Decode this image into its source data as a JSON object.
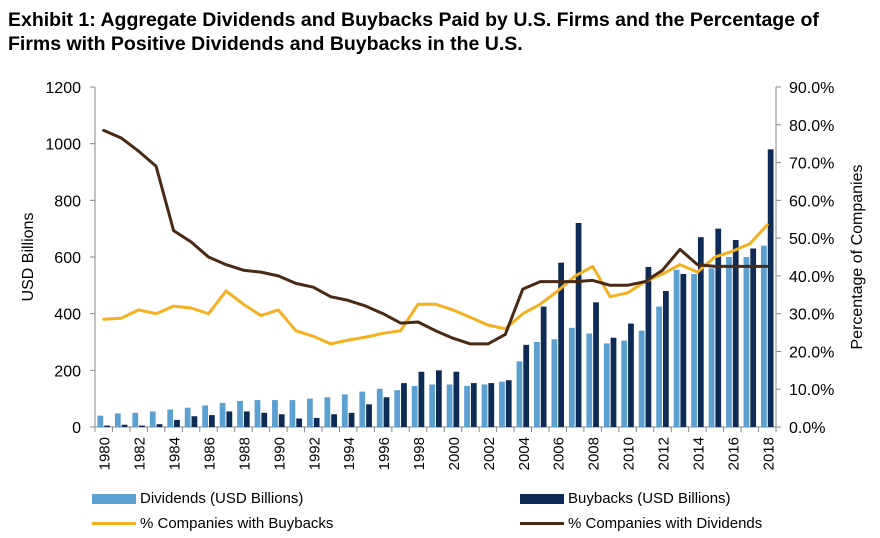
{
  "title": "Exhibit 1: Aggregate Dividends and Buybacks Paid by U.S. Firms and the Percentage of Firms with Positive Dividends and Buybacks in the U.S.",
  "legend": {
    "dividends": "Dividends (USD Billions)",
    "buybacks": "Buybacks (USD Billions)",
    "pct_buybacks": "% Companies with Buybacks",
    "pct_dividends": "% Companies with Dividends"
  },
  "colors": {
    "dividends": "#5aa0d0",
    "buybacks": "#0d2b55",
    "pct_buybacks": "#f5b022",
    "pct_dividends": "#4a2a14"
  },
  "chart_data": {
    "type": "bar",
    "xlabel": "",
    "ylabel": "USD Billions",
    "y2label": "Percentage of Companies",
    "ylim": [
      0,
      1200
    ],
    "y2lim": [
      0,
      90
    ],
    "yticks": [
      "0",
      "200",
      "400",
      "600",
      "800",
      "1000",
      "1200"
    ],
    "y2ticks": [
      "0.0%",
      "10.0%",
      "20.0%",
      "30.0%",
      "40.0%",
      "50.0%",
      "60.0%",
      "70.0%",
      "80.0%",
      "90.0%"
    ],
    "categories": [
      "1980",
      "1981",
      "1982",
      "1983",
      "1984",
      "1985",
      "1986",
      "1987",
      "1988",
      "1989",
      "1990",
      "1991",
      "1992",
      "1993",
      "1994",
      "1995",
      "1996",
      "1997",
      "1998",
      "1999",
      "2000",
      "2001",
      "2002",
      "2003",
      "2004",
      "2005",
      "2006",
      "2007",
      "2008",
      "2009",
      "2010",
      "2011",
      "2012",
      "2013",
      "2014",
      "2015",
      "2016",
      "2017",
      "2018"
    ],
    "xtick_labels": [
      "1980",
      "1982",
      "1984",
      "1986",
      "1988",
      "1990",
      "1992",
      "1994",
      "1996",
      "1998",
      "2000",
      "2002",
      "2004",
      "2006",
      "2008",
      "2010",
      "2012",
      "2014",
      "2016",
      "2018"
    ],
    "series": [
      {
        "name": "Dividends (USD Billions)",
        "type": "bar",
        "axis": "left",
        "values": [
          40,
          48,
          50,
          55,
          62,
          68,
          76,
          85,
          92,
          95,
          95,
          95,
          100,
          105,
          115,
          125,
          135,
          130,
          145,
          150,
          150,
          145,
          150,
          160,
          232,
          300,
          310,
          350,
          330,
          295,
          305,
          340,
          425,
          555,
          540,
          560,
          600,
          600,
          640
        ]
      },
      {
        "name": "Buybacks (USD Billions)",
        "type": "bar",
        "axis": "left",
        "values": [
          5,
          8,
          5,
          10,
          25,
          38,
          42,
          55,
          55,
          50,
          45,
          30,
          32,
          45,
          50,
          80,
          105,
          155,
          195,
          200,
          195,
          155,
          155,
          165,
          290,
          425,
          580,
          720,
          440,
          315,
          365,
          565,
          480,
          540,
          670,
          700,
          660,
          630,
          980
        ]
      },
      {
        "name": "% Companies with Buybacks",
        "type": "line",
        "axis": "right",
        "values": [
          28.5,
          28.8,
          31.0,
          30.0,
          32.0,
          31.5,
          30.0,
          36.0,
          32.5,
          29.5,
          31.0,
          25.5,
          24.0,
          22.0,
          23.0,
          23.8,
          24.8,
          25.5,
          32.5,
          32.5,
          31.0,
          29.0,
          27.0,
          26.0,
          30.0,
          32.5,
          36.0,
          40.0,
          42.5,
          34.5,
          35.5,
          38.5,
          40.5,
          43.0,
          41.0,
          45.0,
          46.5,
          48.5,
          53.5
        ]
      },
      {
        "name": "% Companies with Dividends",
        "type": "line",
        "axis": "right",
        "values": [
          78.5,
          76.5,
          73.0,
          69.0,
          52.0,
          49.0,
          45.0,
          43.0,
          41.5,
          41.0,
          40.0,
          38.0,
          37.0,
          34.5,
          33.5,
          32.0,
          30.0,
          27.5,
          27.8,
          25.5,
          23.5,
          22.0,
          22.0,
          24.5,
          36.5,
          38.5,
          38.5,
          38.5,
          38.8,
          37.5,
          37.5,
          38.5,
          41.5,
          47.0,
          43.0,
          42.5,
          42.5,
          42.5,
          42.5
        ]
      }
    ],
    "grid": false,
    "legend_position": "bottom"
  }
}
